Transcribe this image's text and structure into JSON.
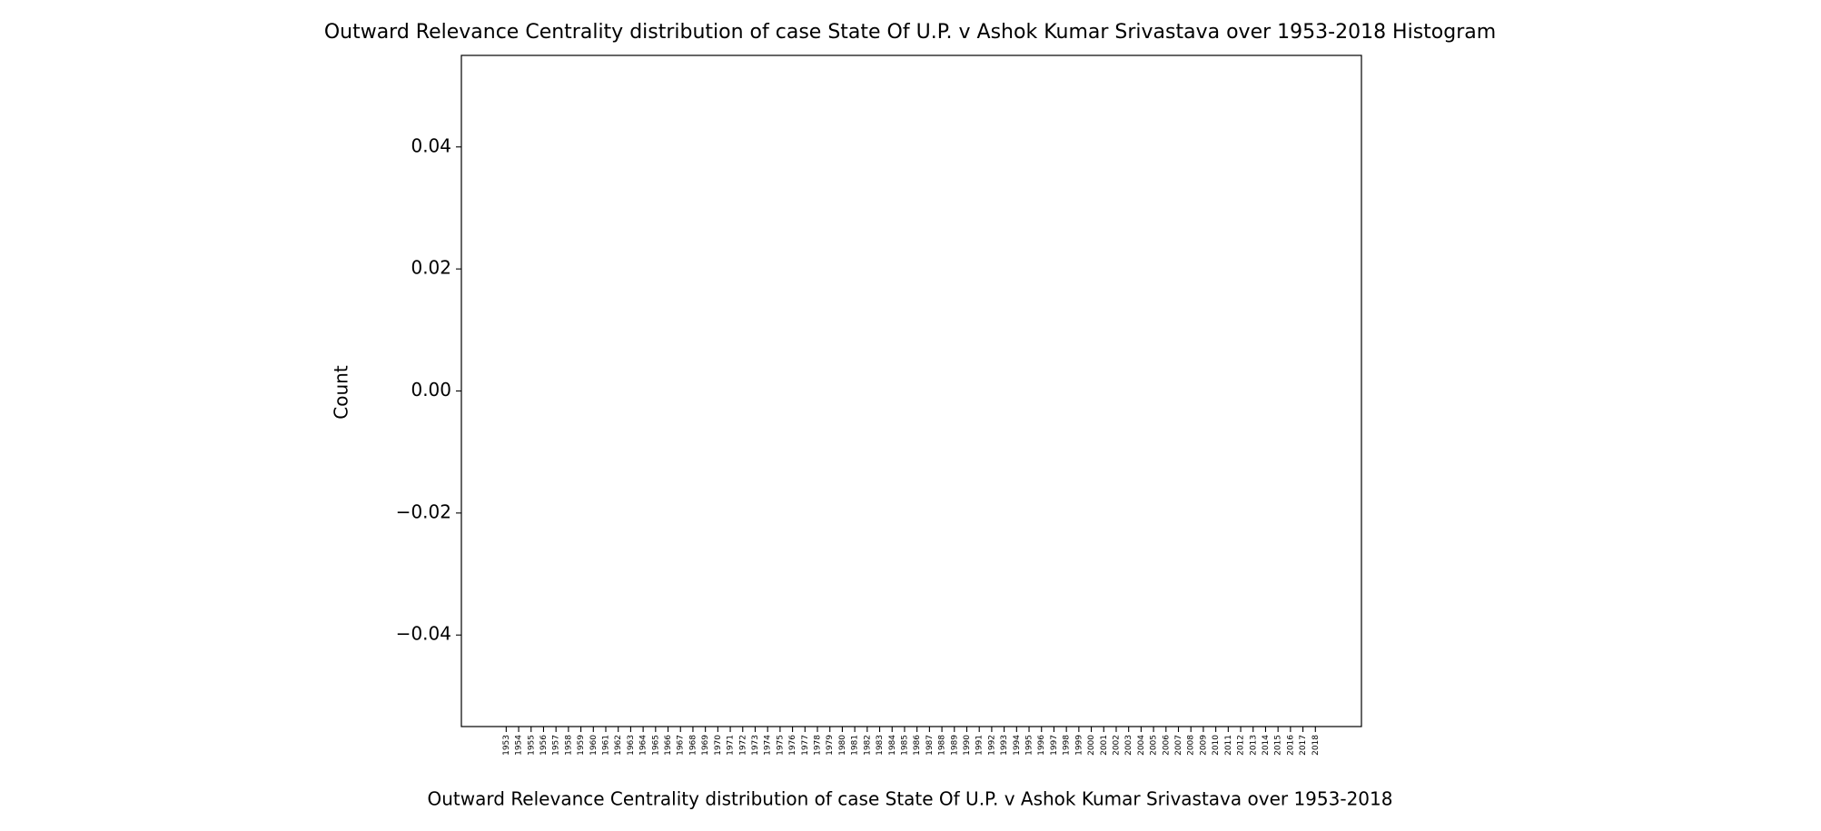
{
  "chart_data": {
    "type": "histogram",
    "title": "Outward Relevance Centrality distribution of case State Of U.P. v Ashok Kumar Srivastava over 1953-2018 Histogram",
    "xlabel": "Outward Relevance Centrality distribution of case State Of U.P. v Ashok Kumar Srivastava over 1953-2018",
    "ylabel": "Count",
    "xlim": [
      1949.4,
      2021.7
    ],
    "xticks": [
      1953,
      1954,
      1955,
      1956,
      1957,
      1958,
      1959,
      1960,
      1961,
      1962,
      1963,
      1964,
      1965,
      1966,
      1967,
      1968,
      1969,
      1970,
      1971,
      1972,
      1973,
      1974,
      1975,
      1976,
      1977,
      1978,
      1979,
      1980,
      1981,
      1982,
      1983,
      1984,
      1985,
      1986,
      1987,
      1988,
      1989,
      1990,
      1991,
      1992,
      1993,
      1994,
      1995,
      1996,
      1997,
      1998,
      1999,
      2000,
      2001,
      2002,
      2003,
      2004,
      2005,
      2006,
      2007,
      2008,
      2009,
      2010,
      2011,
      2012,
      2013,
      2014,
      2015,
      2016,
      2017,
      2018
    ],
    "ylim": [
      -0.055,
      0.055
    ],
    "yticks": [
      {
        "value": -0.04,
        "label": "−0.04"
      },
      {
        "value": -0.02,
        "label": "−0.02"
      },
      {
        "value": 0,
        "label": "0.00"
      },
      0.02,
      0.04
    ]
  }
}
